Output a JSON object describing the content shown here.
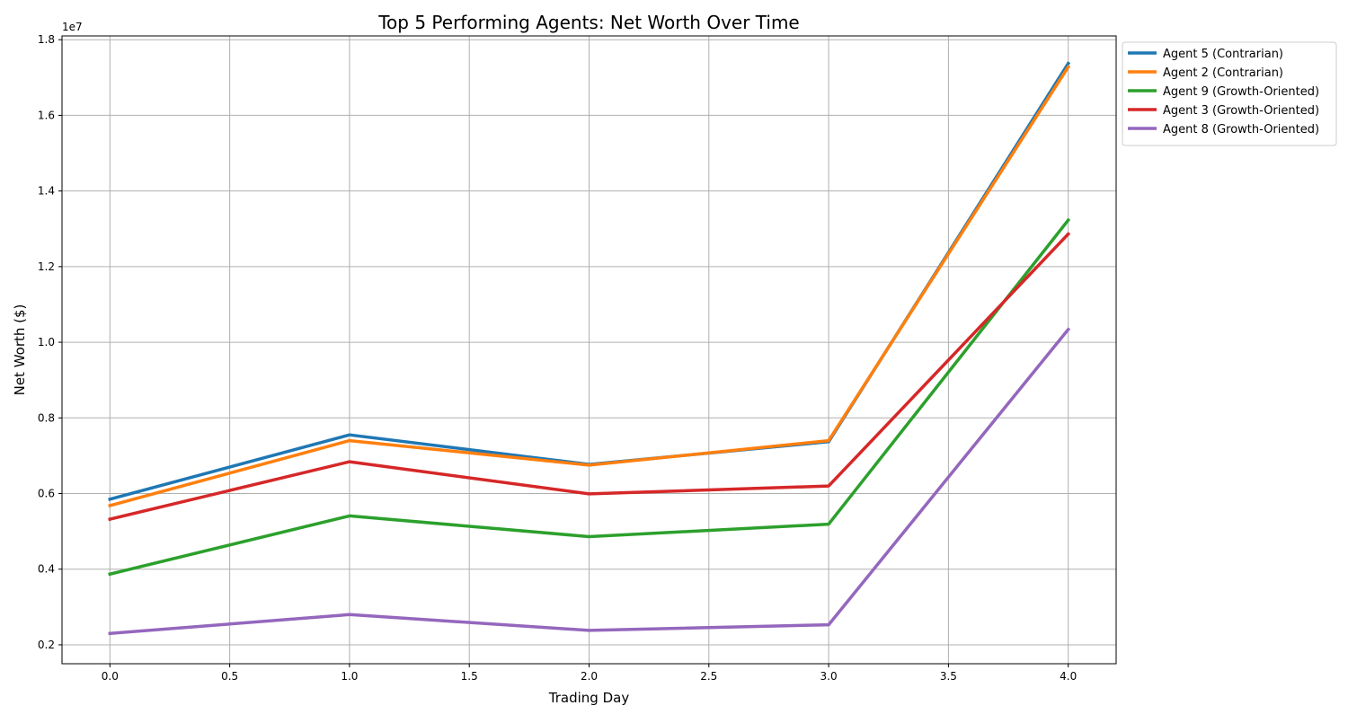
{
  "chart_data": {
    "type": "line",
    "title": "Top 5 Performing Agents: Net Worth Over Time",
    "xlabel": "Trading Day",
    "ylabel": "Net Worth ($)",
    "y_offset_label": "1e7",
    "xlim": [
      -0.2,
      4.2
    ],
    "ylim": [
      1500000,
      18100000
    ],
    "x_ticks": [
      0.0,
      0.5,
      1.0,
      1.5,
      2.0,
      2.5,
      3.0,
      3.5,
      4.0
    ],
    "x_tick_labels": [
      "0.0",
      "0.5",
      "1.0",
      "1.5",
      "2.0",
      "2.5",
      "3.0",
      "3.5",
      "4.0"
    ],
    "y_ticks": [
      2000000,
      4000000,
      6000000,
      8000000,
      10000000,
      12000000,
      14000000,
      16000000,
      18000000
    ],
    "y_tick_labels": [
      "0.2",
      "0.4",
      "0.6",
      "0.8",
      "1.0",
      "1.2",
      "1.4",
      "1.6",
      "1.8"
    ],
    "grid": true,
    "legend_position": "outside-top-right",
    "x": [
      0,
      1,
      2,
      3,
      4
    ],
    "series": [
      {
        "name": "Agent 5 (Contrarian)",
        "color": "#1f77b4",
        "values": [
          5850000,
          7550000,
          6770000,
          7370000,
          17370000
        ]
      },
      {
        "name": "Agent 2 (Contrarian)",
        "color": "#ff7f0e",
        "values": [
          5680000,
          7400000,
          6750000,
          7400000,
          17280000
        ]
      },
      {
        "name": "Agent 9 (Growth-Oriented)",
        "color": "#2ca02c",
        "values": [
          3870000,
          5410000,
          4860000,
          5190000,
          13230000
        ]
      },
      {
        "name": "Agent 3 (Growth-Oriented)",
        "color": "#d62728",
        "values": [
          5320000,
          6840000,
          5990000,
          6200000,
          12860000
        ]
      },
      {
        "name": "Agent 8 (Growth-Oriented)",
        "color": "#9467bd",
        "values": [
          2300000,
          2800000,
          2380000,
          2530000,
          10340000
        ]
      }
    ]
  }
}
